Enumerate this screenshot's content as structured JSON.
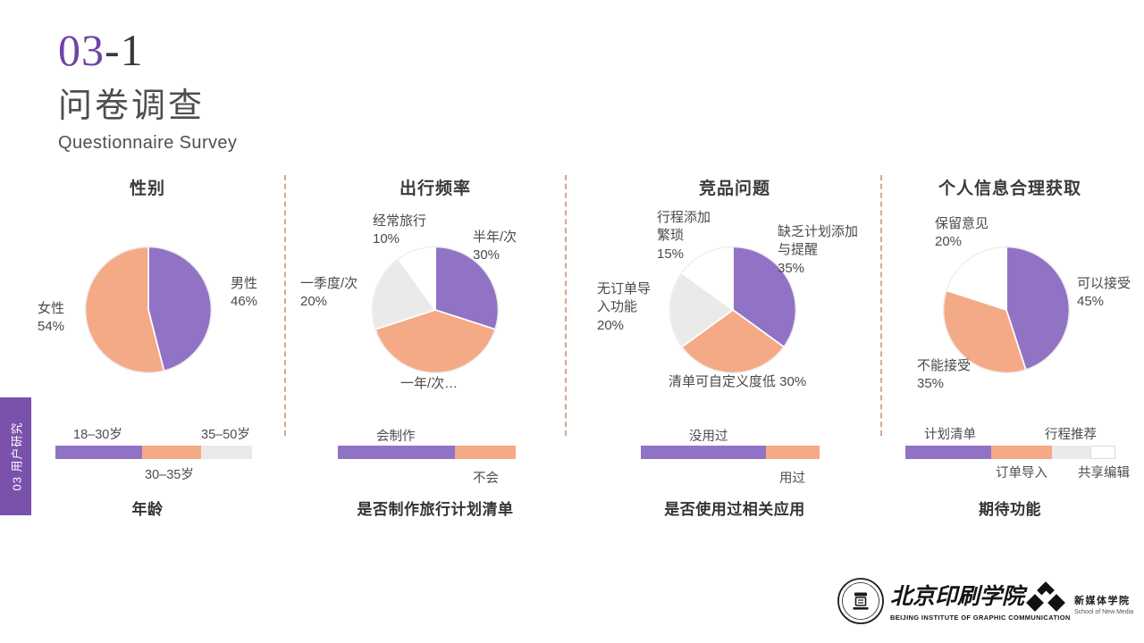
{
  "header": {
    "number_accent": "03",
    "number_rest": "-1",
    "title_zh": "问卷调查",
    "title_en": "Questionnaire Survey"
  },
  "side_tab": {
    "label": "03 用户研究"
  },
  "colors": {
    "purple": "#9173C5",
    "orange": "#F4A987",
    "light_gray": "#EAEAEA",
    "white": "#FFFFFF",
    "divider_dash": "#D9A88B",
    "tab_purple": "#7A52AC",
    "accent_number": "#6F44A3"
  },
  "chart_data": [
    {
      "type": "pie",
      "title": "性别",
      "labels": [
        "男性",
        "女性"
      ],
      "values": [
        46,
        54
      ],
      "unit": "%",
      "colors": [
        "#9173C5",
        "#F4A987"
      ],
      "callouts": [
        "男性\n46%",
        "女性\n54%"
      ]
    },
    {
      "type": "stacked_bar",
      "title": "年龄",
      "labels": [
        "18–30岁",
        "30–35岁",
        "35–50岁"
      ],
      "values": [
        44,
        30,
        26
      ],
      "unit": "%",
      "colors": [
        "#9173C5",
        "#F4A987",
        "#EAEAEA"
      ]
    },
    {
      "type": "pie",
      "title": "出行频率",
      "labels": [
        "半年/次",
        "一年/次",
        "一季度/次",
        "经常旅行"
      ],
      "values": [
        30,
        40,
        20,
        10
      ],
      "unit": "%",
      "colors": [
        "#9173C5",
        "#F4A987",
        "#EAEAEA",
        "#FFFFFF"
      ],
      "callouts": [
        "半年/次\n30%",
        "一年/次…",
        "一季度/次\n20%",
        "经常旅行\n10%"
      ]
    },
    {
      "type": "stacked_bar",
      "title": "是否制作旅行计划清单",
      "labels": [
        "会制作",
        "不会"
      ],
      "values": [
        66,
        34
      ],
      "unit": "%",
      "colors": [
        "#9173C5",
        "#F4A987"
      ]
    },
    {
      "type": "pie",
      "title": "竞品问题",
      "labels": [
        "缺乏计划添加与提醒",
        "清单可自定义度低",
        "无订单导入功能",
        "行程添加繁琐"
      ],
      "values": [
        35,
        30,
        20,
        15
      ],
      "unit": "%",
      "colors": [
        "#9173C5",
        "#F4A987",
        "#EAEAEA",
        "#FFFFFF"
      ],
      "callouts": [
        "缺乏计划添加\n与提醒\n35%",
        "清单可自定义度低 30%",
        "无订单导\n入功能\n20%",
        "行程添加\n繁琐\n15%"
      ]
    },
    {
      "type": "stacked_bar",
      "title": "是否使用过相关应用",
      "labels": [
        "没用过",
        "用过"
      ],
      "values": [
        70,
        30
      ],
      "unit": "%",
      "colors": [
        "#9173C5",
        "#F4A987"
      ]
    },
    {
      "type": "pie",
      "title": "个人信息合理获取",
      "labels": [
        "可以接受",
        "不能接受",
        "保留意见"
      ],
      "values": [
        45,
        35,
        20
      ],
      "unit": "%",
      "colors": [
        "#9173C5",
        "#F4A987",
        "#FFFFFF"
      ],
      "callouts": [
        "可以接受\n45%",
        "不能接受\n35%",
        "保留意见\n20%"
      ]
    },
    {
      "type": "stacked_bar",
      "title": "期待功能",
      "labels": [
        "计划清单",
        "订单导入",
        "行程推荐",
        "共享编辑"
      ],
      "values": [
        41,
        29,
        18,
        12
      ],
      "unit": "%",
      "colors": [
        "#9173C5",
        "#F4A987",
        "#EAEAEA",
        "#FFFFFF"
      ]
    }
  ],
  "footer": {
    "bigc_zh": "北京印刷学院",
    "bigc_en": "BEIJING INSTITUTE OF GRAPHIC COMMUNICATION",
    "snm_zh": "新媒体学院",
    "snm_en": "School of New Media"
  }
}
